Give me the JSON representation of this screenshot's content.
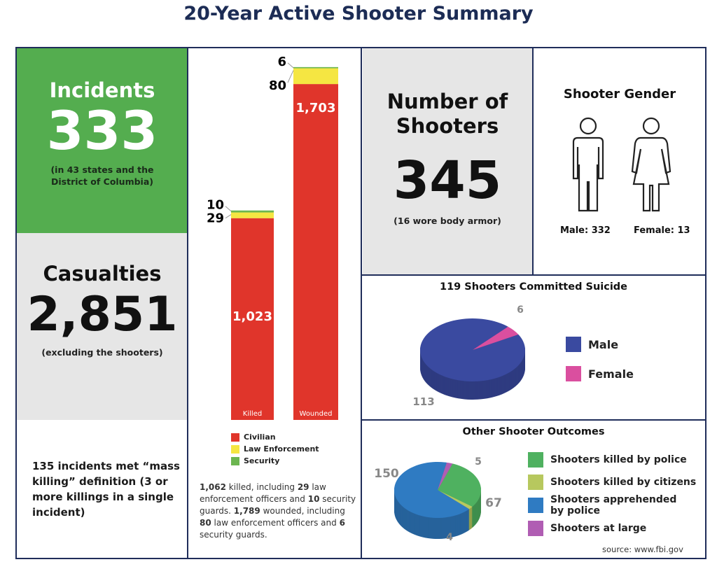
{
  "title": "20-Year Active Shooter Summary",
  "incidents": {
    "label": "Incidents",
    "value": "333",
    "note": "(in 43 states and the District of Columbia)",
    "color": "#54ad4f"
  },
  "casualties": {
    "label": "Casualties",
    "value": "2,851",
    "note": "(excluding the shooters)"
  },
  "mass_killing": "135 incidents met “mass killing” definition (3 or more killings in a single incident)",
  "shooters": {
    "label": "Number of Shooters",
    "value": "345",
    "note": "(16 wore body armor)"
  },
  "gender": {
    "title": "Shooter Gender",
    "male": "Male: 332",
    "female": "Female: 13"
  },
  "bar_summary": {
    "p1": "1,062",
    "t1": " killed, including ",
    "p2": "29",
    "t2": " law enforcement officers and ",
    "p3": "10",
    "t3": " security guards. ",
    "p4": "1,789",
    "t4": " wounded, including ",
    "p5": "80",
    "t5": " law enforcement officers and ",
    "p6": "6",
    "t6": " security guards."
  },
  "source": "source: www.fbi.gov",
  "chart_data": [
    {
      "type": "bar",
      "stacked": true,
      "categories": [
        "Killed",
        "Wounded"
      ],
      "series": [
        {
          "name": "Civilian",
          "values": [
            1023,
            1703
          ],
          "color": "#e0352b"
        },
        {
          "name": "Law Enforcement",
          "values": [
            29,
            80
          ],
          "color": "#f5e642"
        },
        {
          "name": "Security",
          "values": [
            10,
            6
          ],
          "color": "#6cb650"
        }
      ]
    },
    {
      "type": "pie",
      "title": "119 Shooters Committed Suicide",
      "labels": [
        "Male",
        "Female"
      ],
      "values": [
        113,
        6
      ],
      "colors": [
        "#3a4aa0",
        "#da4f9f"
      ]
    },
    {
      "type": "pie",
      "title": "Other Shooter Outcomes",
      "labels": [
        "Shooters killed by police",
        "Shooters killed by citizens",
        "Shooters apprehended by police",
        "Shooters at large"
      ],
      "values": [
        67,
        4,
        150,
        5
      ],
      "colors": [
        "#4fb160",
        "#b7c85e",
        "#2f7bc2",
        "#b05db3"
      ]
    }
  ]
}
